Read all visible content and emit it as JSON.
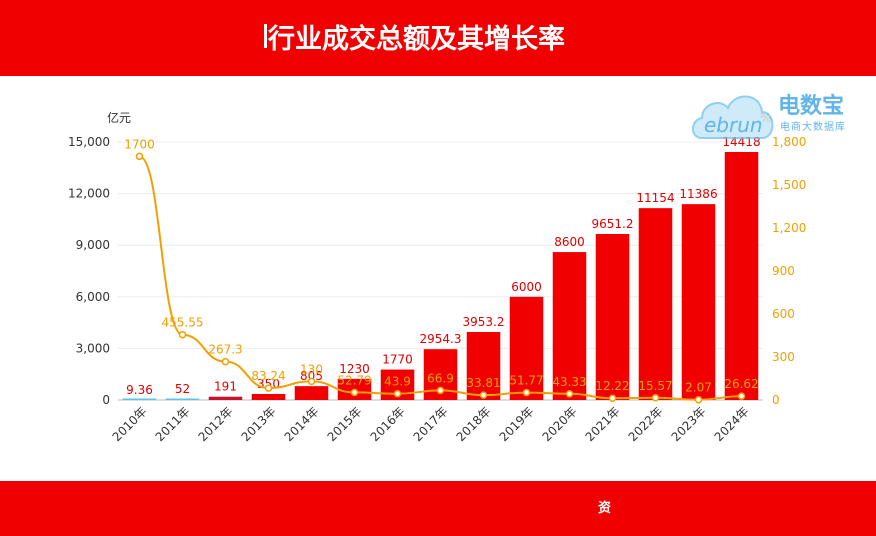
{
  "header": {
    "title": "行业成交总额及其增长率"
  },
  "footer": {
    "source_text": "资"
  },
  "logo": {
    "name": "电数宝",
    "subtitle": "电商大数据库",
    "mark": "ebrun"
  },
  "colors": {
    "banner": "#f00000",
    "bar": "#f00000",
    "bar_early": "#5ec3e8",
    "line": "#f0a000",
    "axis": "#666666"
  },
  "chart_data": {
    "type": "bar",
    "categories": [
      "2010年",
      "2011年",
      "2012年",
      "2013年",
      "2014年",
      "2015年",
      "2016年",
      "2017年",
      "2018年",
      "2019年",
      "2020年",
      "2021年",
      "2022年",
      "2023年",
      "2024年"
    ],
    "series": [
      {
        "values": [
          9.36,
          52,
          191,
          350,
          805,
          1230,
          1770,
          2954.3,
          3953.2,
          6000,
          8600,
          9651.2,
          11154,
          11386,
          14418
        ],
        "labels": [
          "9.36",
          "52",
          "191",
          "350",
          "805",
          "1230",
          "1770",
          "2954.3",
          "3953.2",
          "6000",
          "8600",
          "9651.2",
          "11154",
          "11386",
          "14418"
        ],
        "type": "bar",
        "axis": "left"
      },
      {
        "values": [
          1700,
          455.55,
          267.3,
          83.24,
          130,
          52.79,
          43.9,
          66.9,
          33.81,
          51.77,
          43.33,
          12.22,
          15.57,
          2.07,
          26.62
        ],
        "labels": [
          "1700",
          "455.55",
          "267.3",
          "83.24",
          "130",
          "52.79",
          "43.9",
          "66.9",
          "33.81",
          "51.77",
          "43.33",
          "12.22",
          "15.57",
          "2.07",
          "26.62"
        ],
        "type": "line",
        "axis": "right"
      }
    ],
    "ylabel": "亿元",
    "y2label": "%",
    "ylim": [
      0,
      15000
    ],
    "y2lim": [
      0,
      1800
    ],
    "yticks": [
      "0",
      "3,000",
      "6,000",
      "9,000",
      "12,000",
      "15,000"
    ],
    "y2ticks": [
      "0",
      "300",
      "600",
      "900",
      "1,200",
      "1,500",
      "1,800"
    ],
    "grid": true
  }
}
